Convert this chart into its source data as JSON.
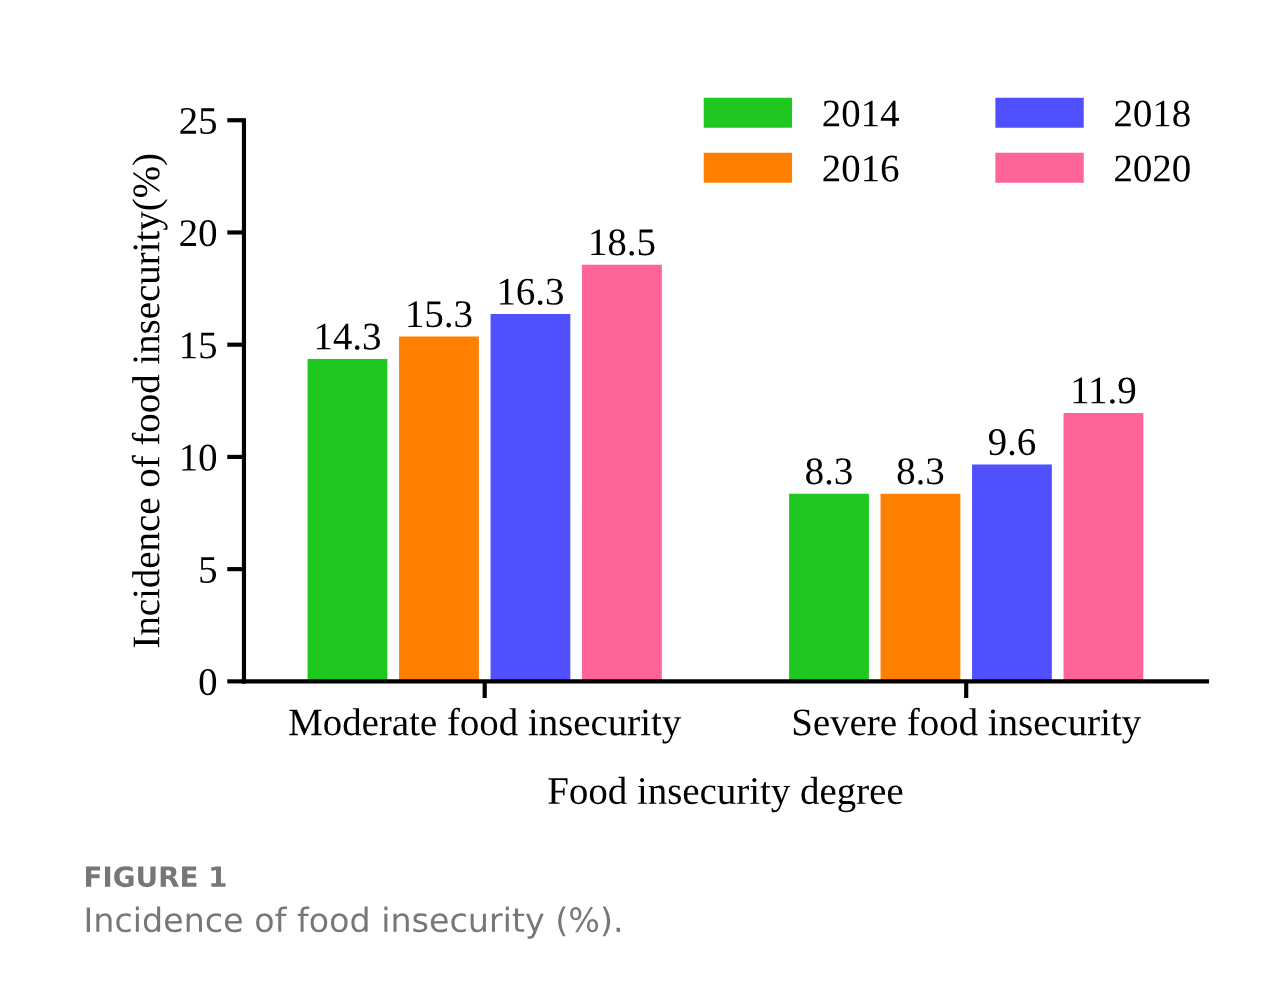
{
  "chart_data": {
    "type": "bar",
    "xlabel": "Food insecurity degree",
    "ylabel": "Incidence of food insecurity(%)",
    "categories": [
      "Moderate food insecurity",
      "Severe food insecurity"
    ],
    "series": [
      {
        "name": "2014",
        "color": "#1ec81e",
        "values": [
          14.3,
          8.3
        ]
      },
      {
        "name": "2016",
        "color": "#ff8000",
        "values": [
          15.3,
          8.3
        ]
      },
      {
        "name": "2018",
        "color": "#5050ff",
        "values": [
          16.3,
          9.6
        ]
      },
      {
        "name": "2020",
        "color": "#ff6496",
        "values": [
          18.5,
          11.9
        ]
      }
    ],
    "ylim": [
      0,
      25
    ],
    "yticks": [
      0,
      5,
      10,
      15,
      20,
      25
    ],
    "data_labels": true,
    "grid": false,
    "legend": "top right",
    "annotations": [
      "FIGURE 1",
      "Incidence of food insecurity (%)."
    ]
  }
}
